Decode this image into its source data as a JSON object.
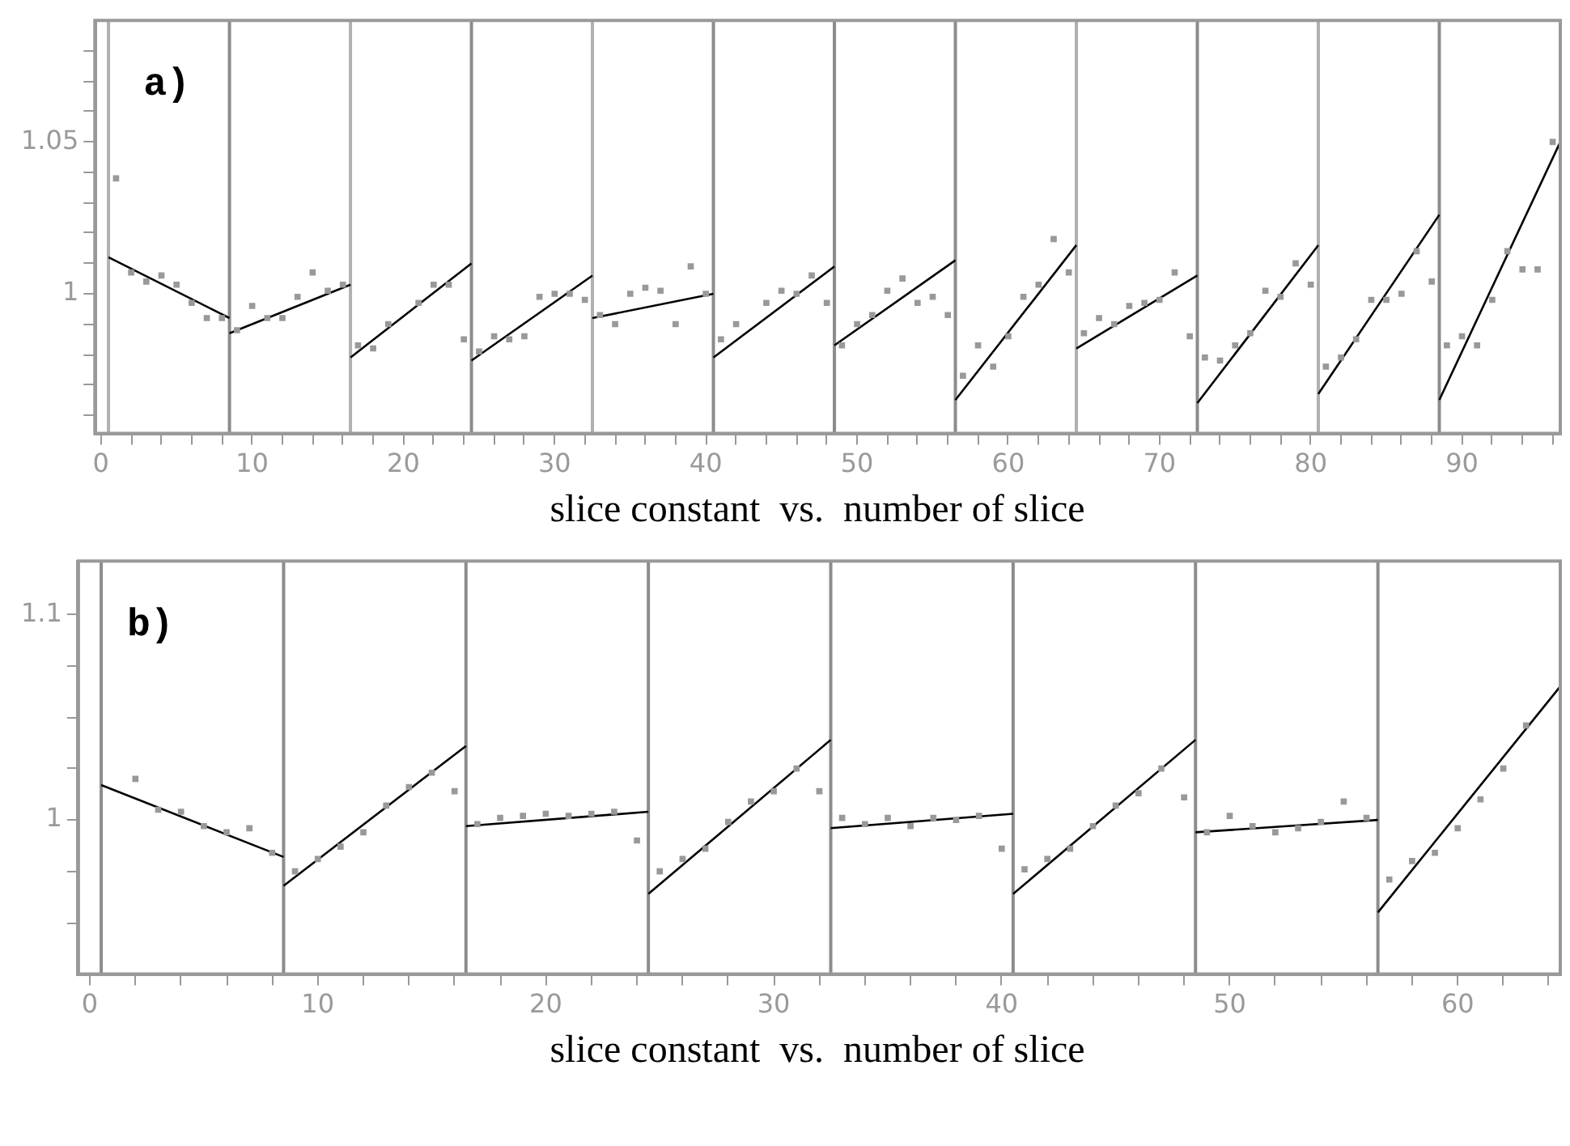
{
  "chart_data": [
    {
      "type": "scatter",
      "xlabel": "slice constant  vs.  number of slice",
      "annotations": [
        "a)"
      ],
      "xlim": [
        -0.4,
        96.5
      ],
      "ylim": [
        0.954,
        1.09
      ],
      "xticks": [
        0,
        {
          "value": 2,
          "label": null
        },
        {
          "value": 4,
          "label": null
        },
        {
          "value": 6,
          "label": null
        },
        {
          "value": 8,
          "label": null
        },
        10,
        {
          "value": 12,
          "label": null
        },
        {
          "value": 14,
          "label": null
        },
        {
          "value": 16,
          "label": null
        },
        {
          "value": 18,
          "label": null
        },
        20,
        {
          "value": 22,
          "label": null
        },
        {
          "value": 24,
          "label": null
        },
        {
          "value": 26,
          "label": null
        },
        {
          "value": 28,
          "label": null
        },
        30,
        {
          "value": 32,
          "label": null
        },
        {
          "value": 34,
          "label": null
        },
        {
          "value": 36,
          "label": null
        },
        {
          "value": 38,
          "label": null
        },
        40,
        {
          "value": 42,
          "label": null
        },
        {
          "value": 44,
          "label": null
        },
        {
          "value": 46,
          "label": null
        },
        {
          "value": 48,
          "label": null
        },
        50,
        {
          "value": 52,
          "label": null
        },
        {
          "value": 54,
          "label": null
        },
        {
          "value": 56,
          "label": null
        },
        {
          "value": 58,
          "label": null
        },
        60,
        {
          "value": 62,
          "label": null
        },
        {
          "value": 64,
          "label": null
        },
        {
          "value": 66,
          "label": null
        },
        {
          "value": 68,
          "label": null
        },
        70,
        {
          "value": 72,
          "label": null
        },
        {
          "value": 74,
          "label": null
        },
        {
          "value": 76,
          "label": null
        },
        {
          "value": 78,
          "label": null
        },
        80,
        {
          "value": 82,
          "label": null
        },
        {
          "value": 84,
          "label": null
        },
        {
          "value": 86,
          "label": null
        },
        {
          "value": 88,
          "label": null
        },
        90,
        {
          "value": 92,
          "label": null
        },
        {
          "value": 94,
          "label": null
        },
        {
          "value": 96,
          "label": null
        }
      ],
      "yticks": [
        {
          "value": 0.96,
          "label": null
        },
        {
          "value": 0.97,
          "label": null
        },
        {
          "value": 0.98,
          "label": null
        },
        {
          "value": 0.99,
          "label": null
        },
        1,
        {
          "value": 1.01,
          "label": null
        },
        {
          "value": 1.02,
          "label": null
        },
        {
          "value": 1.03,
          "label": null
        },
        {
          "value": 1.04,
          "label": null
        },
        1.05,
        {
          "value": 1.06,
          "label": null
        },
        {
          "value": 1.07,
          "label": null
        },
        {
          "value": 1.08,
          "label": null
        }
      ],
      "grid": false,
      "ref_lines": [
        {
          "axis": "x",
          "value": 0.5,
          "color": "#b0b0b0"
        },
        {
          "axis": "x",
          "value": 8.5,
          "color": "#8c8c8c"
        },
        {
          "axis": "x",
          "value": 16.5,
          "color": "#b0b0b0"
        },
        {
          "axis": "x",
          "value": 24.5,
          "color": "#8c8c8c"
        },
        {
          "axis": "x",
          "value": 32.5,
          "color": "#b0b0b0"
        },
        {
          "axis": "x",
          "value": 40.5,
          "color": "#8c8c8c"
        },
        {
          "axis": "x",
          "value": 48.5,
          "color": "#8c8c8c"
        },
        {
          "axis": "x",
          "value": 56.5,
          "color": "#8c8c8c"
        },
        {
          "axis": "x",
          "value": 64.5,
          "color": "#b0b0b0"
        },
        {
          "axis": "x",
          "value": 72.5,
          "color": "#8c8c8c"
        },
        {
          "axis": "x",
          "value": 80.5,
          "color": "#b0b0b0"
        },
        {
          "axis": "x",
          "value": 88.5,
          "color": "#8c8c8c"
        }
      ],
      "series": [
        {
          "type": "scatter",
          "marker": "square",
          "color": "#999999",
          "x": [
            1,
            2,
            3,
            4,
            5,
            6,
            7,
            8,
            9,
            10,
            11,
            12,
            13,
            14,
            15,
            16,
            17,
            18,
            19,
            21,
            22,
            23,
            24,
            25,
            26,
            27,
            28,
            29,
            30,
            31,
            32,
            33,
            34,
            35,
            36,
            37,
            38,
            39,
            40,
            41,
            42,
            44,
            45,
            46,
            47,
            48,
            49,
            50,
            51,
            52,
            53,
            54,
            55,
            56,
            57,
            58,
            59,
            60,
            61,
            62,
            63,
            64,
            65,
            66,
            67,
            68,
            69,
            70,
            71,
            72,
            73,
            74,
            75,
            76,
            77,
            78,
            79,
            80,
            81,
            82,
            83,
            84,
            85,
            86,
            87,
            88,
            89,
            90,
            91,
            92,
            93,
            94,
            95,
            96
          ],
          "values": [
            1.038,
            1.007,
            1.004,
            1.006,
            1.003,
            0.997,
            0.992,
            0.992,
            0.988,
            0.996,
            0.992,
            0.992,
            0.999,
            1.007,
            1.001,
            1.003,
            0.983,
            0.982,
            0.99,
            0.997,
            1.003,
            1.003,
            0.985,
            0.981,
            0.986,
            0.985,
            0.986,
            0.999,
            1.0,
            1.0,
            0.998,
            0.993,
            0.99,
            1.0,
            1.002,
            1.001,
            0.99,
            1.009,
            1.0,
            0.985,
            0.99,
            0.997,
            1.001,
            1.0,
            1.006,
            0.997,
            0.983,
            0.99,
            0.993,
            1.001,
            1.005,
            0.997,
            0.999,
            0.993,
            0.973,
            0.983,
            0.976,
            0.986,
            0.999,
            1.003,
            1.018,
            1.007,
            0.987,
            0.992,
            0.99,
            0.996,
            0.997,
            0.998,
            1.007,
            0.986,
            0.979,
            0.978,
            0.983,
            0.987,
            1.001,
            0.999,
            1.01,
            1.003,
            0.976,
            0.979,
            0.985,
            0.998,
            0.998,
            1.0,
            1.014,
            1.004,
            0.983,
            0.986,
            0.983,
            0.998,
            1.014,
            1.008,
            1.008,
            1.05
          ]
        },
        {
          "type": "line",
          "color": "#000000",
          "x": [
            0.5,
            8.5
          ],
          "values": [
            1.012,
            0.992
          ]
        },
        {
          "type": "line",
          "color": "#000000",
          "x": [
            8.5,
            16.5
          ],
          "values": [
            0.987,
            1.003
          ]
        },
        {
          "type": "line",
          "color": "#000000",
          "x": [
            16.5,
            24.5
          ],
          "values": [
            0.979,
            1.01
          ]
        },
        {
          "type": "line",
          "color": "#000000",
          "x": [
            24.5,
            32.5
          ],
          "values": [
            0.978,
            1.006
          ]
        },
        {
          "type": "line",
          "color": "#000000",
          "x": [
            32.5,
            40.5
          ],
          "values": [
            0.992,
            1.0
          ]
        },
        {
          "type": "line",
          "color": "#000000",
          "x": [
            40.5,
            48.5
          ],
          "values": [
            0.979,
            1.009
          ]
        },
        {
          "type": "line",
          "color": "#000000",
          "x": [
            48.5,
            56.5
          ],
          "values": [
            0.983,
            1.011
          ]
        },
        {
          "type": "line",
          "color": "#000000",
          "x": [
            56.5,
            64.5
          ],
          "values": [
            0.965,
            1.016
          ]
        },
        {
          "type": "line",
          "color": "#000000",
          "x": [
            64.5,
            72.5
          ],
          "values": [
            0.982,
            1.006
          ]
        },
        {
          "type": "line",
          "color": "#000000",
          "x": [
            72.5,
            80.5
          ],
          "values": [
            0.964,
            1.016
          ]
        },
        {
          "type": "line",
          "color": "#000000",
          "x": [
            80.5,
            88.5
          ],
          "values": [
            0.967,
            1.026
          ]
        },
        {
          "type": "line",
          "color": "#000000",
          "x": [
            88.5,
            96.5
          ],
          "values": [
            0.965,
            1.05
          ]
        }
      ]
    },
    {
      "type": "scatter",
      "xlabel": "slice constant  vs.  number of slice",
      "annotations": [
        "b)"
      ],
      "xlim": [
        -0.5,
        64.5
      ],
      "ylim": [
        0.925,
        1.126
      ],
      "xticks": [
        0,
        {
          "value": 2,
          "label": null
        },
        {
          "value": 4,
          "label": null
        },
        {
          "value": 6,
          "label": null
        },
        {
          "value": 8,
          "label": null
        },
        10,
        {
          "value": 12,
          "label": null
        },
        {
          "value": 14,
          "label": null
        },
        {
          "value": 16,
          "label": null
        },
        {
          "value": 18,
          "label": null
        },
        20,
        {
          "value": 22,
          "label": null
        },
        {
          "value": 24,
          "label": null
        },
        {
          "value": 26,
          "label": null
        },
        {
          "value": 28,
          "label": null
        },
        30,
        {
          "value": 32,
          "label": null
        },
        {
          "value": 34,
          "label": null
        },
        {
          "value": 36,
          "label": null
        },
        {
          "value": 38,
          "label": null
        },
        40,
        {
          "value": 42,
          "label": null
        },
        {
          "value": 44,
          "label": null
        },
        {
          "value": 46,
          "label": null
        },
        {
          "value": 48,
          "label": null
        },
        50,
        {
          "value": 52,
          "label": null
        },
        {
          "value": 54,
          "label": null
        },
        {
          "value": 56,
          "label": null
        },
        {
          "value": 58,
          "label": null
        },
        60,
        {
          "value": 62,
          "label": null
        },
        {
          "value": 64,
          "label": null
        }
      ],
      "yticks": [
        {
          "value": 0.95,
          "label": null
        },
        {
          "value": 0.975,
          "label": null
        },
        1,
        {
          "value": 1.025,
          "label": null
        },
        {
          "value": 1.05,
          "label": null
        },
        {
          "value": 1.075,
          "label": null
        },
        1.1
      ],
      "grid": false,
      "ref_lines": [
        {
          "axis": "x",
          "value": 0.5,
          "color": "#8c8c8c"
        },
        {
          "axis": "x",
          "value": 8.5,
          "color": "#8c8c8c"
        },
        {
          "axis": "x",
          "value": 16.5,
          "color": "#8c8c8c"
        },
        {
          "axis": "x",
          "value": 24.5,
          "color": "#8c8c8c"
        },
        {
          "axis": "x",
          "value": 32.5,
          "color": "#8c8c8c"
        },
        {
          "axis": "x",
          "value": 40.5,
          "color": "#8c8c8c"
        },
        {
          "axis": "x",
          "value": 48.5,
          "color": "#8c8c8c"
        },
        {
          "axis": "x",
          "value": 56.5,
          "color": "#8c8c8c"
        }
      ],
      "series": [
        {
          "type": "scatter",
          "marker": "square",
          "color": "#999999",
          "x": [
            2,
            3,
            4,
            5,
            6,
            7,
            8,
            9,
            10,
            11,
            12,
            13,
            14,
            15,
            16,
            17,
            18,
            19,
            20,
            21,
            22,
            23,
            24,
            25,
            26,
            27,
            28,
            29,
            30,
            31,
            32,
            33,
            34,
            35,
            36,
            37,
            38,
            39,
            40,
            41,
            42,
            43,
            44,
            45,
            46,
            47,
            48,
            49,
            50,
            51,
            52,
            53,
            54,
            55,
            56,
            57,
            58,
            59,
            60,
            61,
            62,
            63
          ],
          "values": [
            1.02,
            1.005,
            1.004,
            0.997,
            0.994,
            0.996,
            0.984,
            0.975,
            0.981,
            0.987,
            0.994,
            1.007,
            1.016,
            1.023,
            1.014,
            0.998,
            1.001,
            1.002,
            1.003,
            1.002,
            1.003,
            1.004,
            0.99,
            0.975,
            0.981,
            0.986,
            0.999,
            1.009,
            1.014,
            1.025,
            1.014,
            1.001,
            0.998,
            1.001,
            0.997,
            1.001,
            1.0,
            1.002,
            0.986,
            0.976,
            0.981,
            0.986,
            0.997,
            1.007,
            1.013,
            1.025,
            1.011,
            0.994,
            1.002,
            0.997,
            0.994,
            0.996,
            0.999,
            1.009,
            1.001,
            0.971,
            0.98,
            0.984,
            0.996,
            1.01,
            1.025,
            1.046
          ]
        },
        {
          "type": "line",
          "color": "#000000",
          "x": [
            0.5,
            8.5
          ],
          "values": [
            1.017,
            0.982
          ]
        },
        {
          "type": "line",
          "color": "#000000",
          "x": [
            8.5,
            16.5
          ],
          "values": [
            0.968,
            1.036
          ]
        },
        {
          "type": "line",
          "color": "#000000",
          "x": [
            16.5,
            24.5
          ],
          "values": [
            0.997,
            1.004
          ]
        },
        {
          "type": "line",
          "color": "#000000",
          "x": [
            24.5,
            32.5
          ],
          "values": [
            0.964,
            1.039
          ]
        },
        {
          "type": "line",
          "color": "#000000",
          "x": [
            32.5,
            40.5
          ],
          "values": [
            0.996,
            1.003
          ]
        },
        {
          "type": "line",
          "color": "#000000",
          "x": [
            40.5,
            48.5
          ],
          "values": [
            0.964,
            1.039
          ]
        },
        {
          "type": "line",
          "color": "#000000",
          "x": [
            48.5,
            56.5
          ],
          "values": [
            0.994,
            1.0
          ]
        },
        {
          "type": "line",
          "color": "#000000",
          "x": [
            56.5,
            64.5
          ],
          "values": [
            0.955,
            1.065
          ]
        }
      ]
    }
  ]
}
